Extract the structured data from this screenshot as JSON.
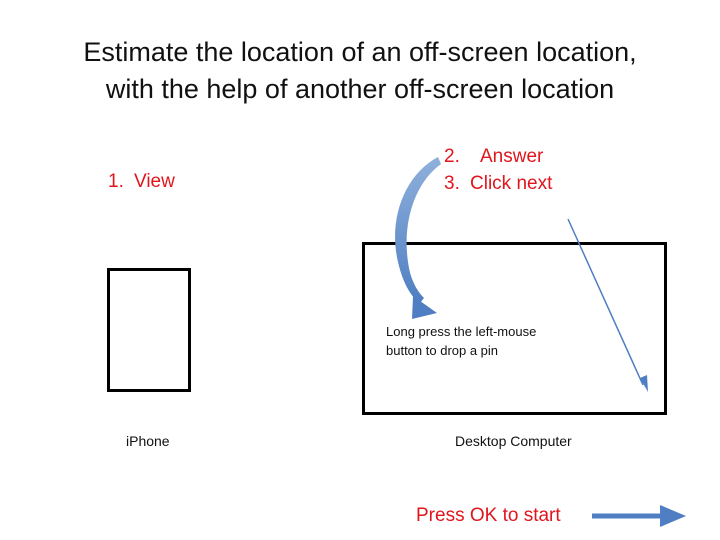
{
  "title": {
    "line1": "Estimate the location of an off-screen location,",
    "line2": "with the help of another off-screen location"
  },
  "steps": [
    {
      "number": "1.",
      "label": "View"
    },
    {
      "number": "2.",
      "label": "Answer"
    },
    {
      "number": "3.",
      "label": "Click next"
    }
  ],
  "desktop": {
    "instruction_line1": "Long press the left-mouse",
    "instruction_line2": "button to drop a pin"
  },
  "devices": {
    "iphone_label": "iPhone",
    "desktop_label": "Desktop Computer"
  },
  "start": {
    "label": "Press OK to start"
  },
  "colors": {
    "accent_red": "#e0161d",
    "arrow_blue": "#4f7fc2",
    "frame": "#000000",
    "text": "#111111"
  },
  "icons": {
    "curved_arrow": "curved-arrow-icon",
    "diagonal_arrow": "diagonal-arrow-icon",
    "right_arrow": "right-arrow-icon"
  }
}
